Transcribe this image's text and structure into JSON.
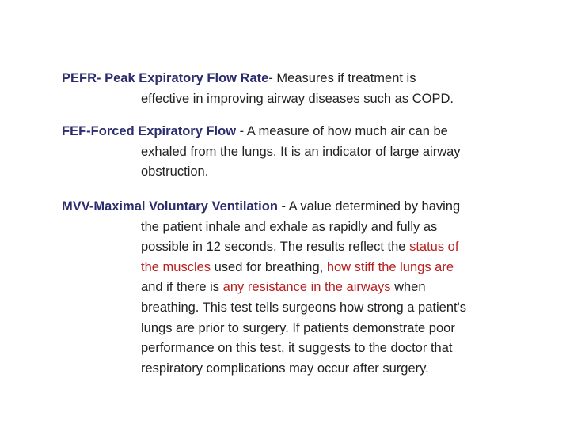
{
  "colors": {
    "term": "#2b2d6e",
    "text": "#222222",
    "highlight": "#b8201f",
    "background": "#ffffff"
  },
  "entries": {
    "pefr": {
      "term": "PEFR- Peak Expiratory Flow Rate",
      "lines": [
        "- Measures if treatment is",
        "effective in improving airway diseases such as COPD."
      ]
    },
    "fef": {
      "term": "FEF-Forced Expiratory Flow",
      "lines": [
        " - A measure of how much air can be",
        "exhaled from the lungs. It is an indicator of large airway",
        "obstruction."
      ]
    },
    "mvv": {
      "term": "MVV-Maximal Voluntary Ventilation",
      "line1": " - A value determined by having",
      "line2": "the patient inhale and exhale as rapidly and fully as",
      "line3_a": "possible in 12 seconds. The results reflect the ",
      "line3_hl": "status of",
      "line4_hl1": "the muscles",
      "line4_b": " used for breathing, ",
      "line4_hl2": "how stiff the lungs are",
      "line5_a": "and if there is ",
      "line5_hl": "any resistance in the airways",
      "line5_b": " when",
      "line6": "breathing. This test tells surgeons how strong a patient's",
      "line7": "lungs are prior to surgery. If patients demonstrate poor",
      "line8": "performance on this test, it suggests to the doctor that",
      "line9": "respiratory complications may occur after surgery."
    }
  }
}
